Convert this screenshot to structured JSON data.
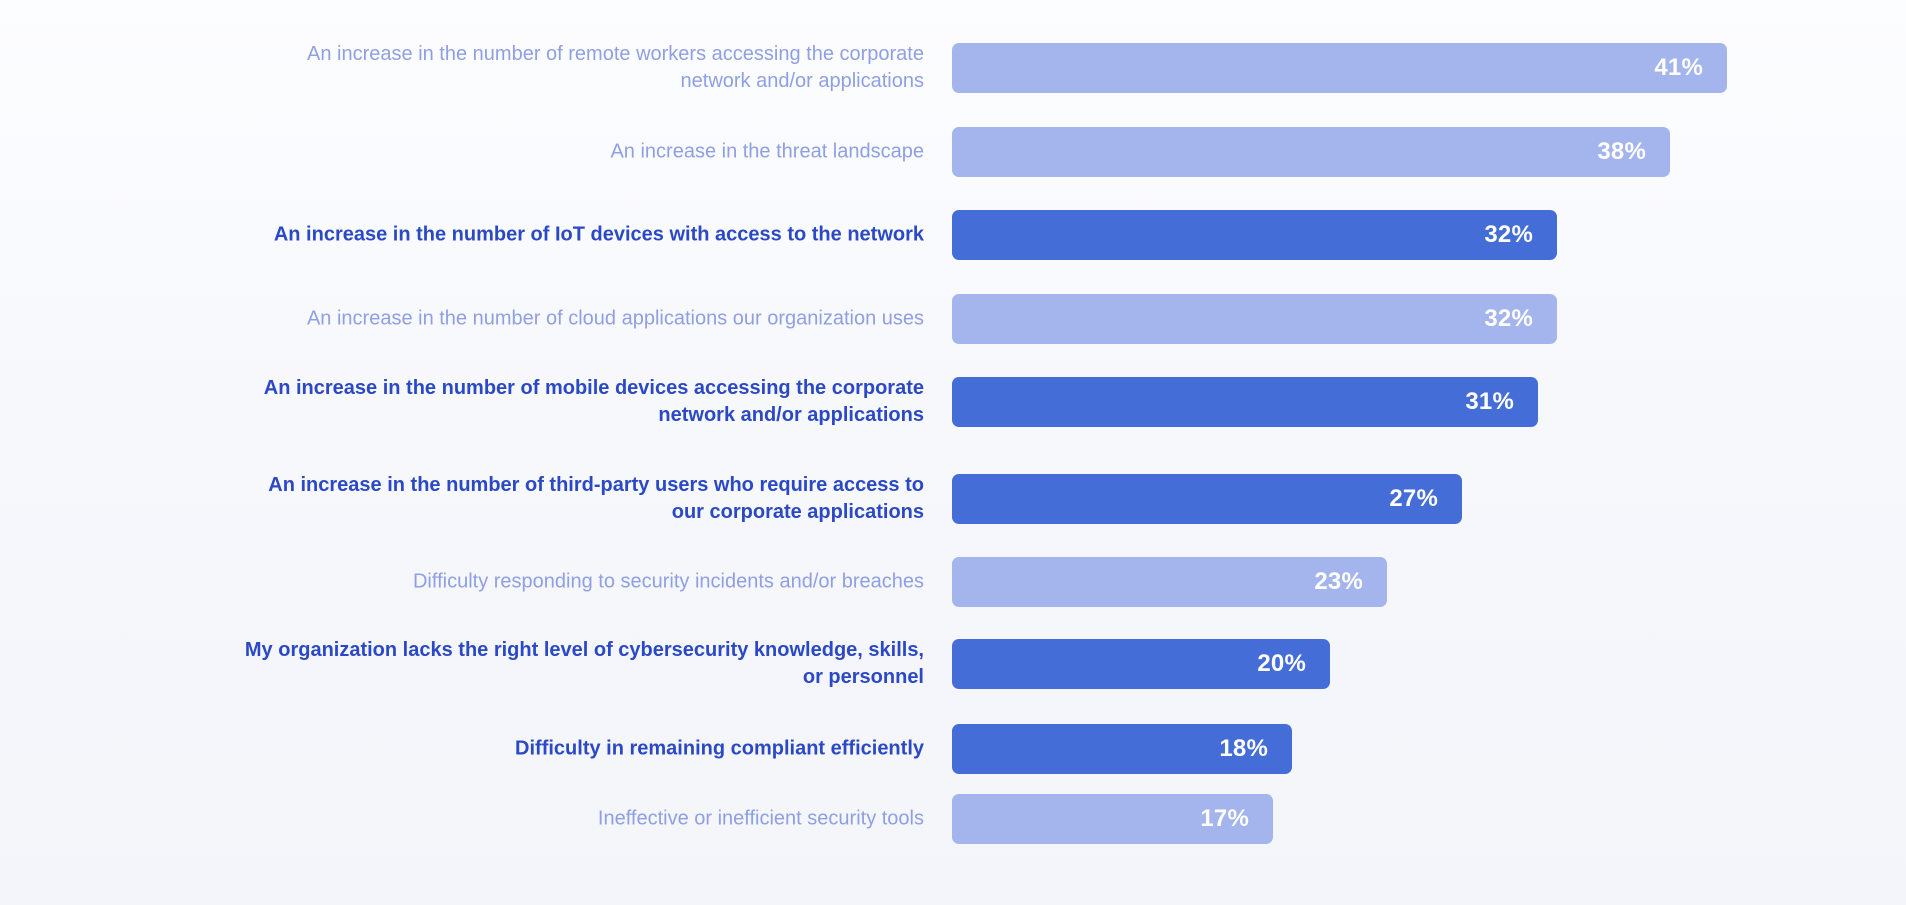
{
  "chart_data": {
    "type": "bar",
    "orientation": "horizontal",
    "categories": [
      "An increase in the number of remote workers accessing the corporate network and/or applications",
      "An increase in the threat landscape",
      "An increase in the number of IoT devices with access to the network",
      "An increase in the number of cloud applications our organization uses",
      "An increase in the number of mobile devices accessing the corporate network and/or applications",
      "An increase in the number of third-party users who require access to our corporate applications",
      "Difficulty responding to security incidents and/or breaches",
      "My organization lacks the right level of cybersecurity knowledge, skills, or personnel",
      "Difficulty in remaining compliant efficiently",
      "Ineffective or inefficient security tools"
    ],
    "values": [
      41,
      38,
      32,
      32,
      31,
      27,
      23,
      20,
      18,
      17
    ],
    "value_labels": [
      "41%",
      "38%",
      "32%",
      "32%",
      "31%",
      "27%",
      "23%",
      "20%",
      "18%",
      "17%"
    ],
    "highlighted": [
      false,
      false,
      true,
      false,
      true,
      true,
      false,
      true,
      true,
      false
    ],
    "xlim": [
      0,
      41
    ],
    "grid": false,
    "legend": "none",
    "colors": {
      "light_bar": "#a3b5ec",
      "dark_bar": "#446dd7",
      "light_text": "#8f9fe3",
      "dark_text": "#2b49c6",
      "value_text": "#ffffff"
    }
  }
}
